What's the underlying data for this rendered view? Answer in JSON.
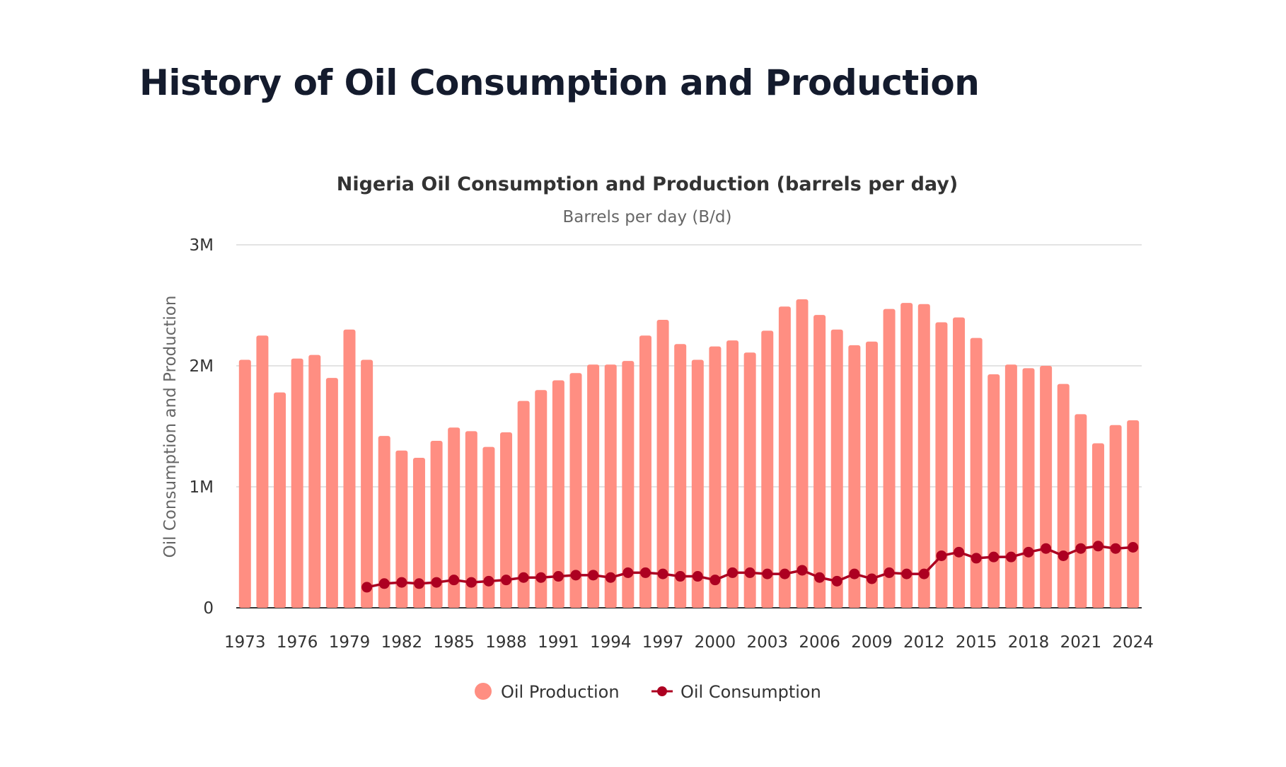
{
  "page_title": "History of Oil Consumption and Production",
  "colors": {
    "production": "#FF8E82",
    "consumption": "#AD0021"
  },
  "chart_data": {
    "type": "bar",
    "title": "Nigeria Oil Consumption and Production (barrels per day)",
    "subtitle": "Barrels per day (B/d)",
    "xlabel": "",
    "ylabel": "Oil Consumption and Production",
    "ylim": [
      0,
      3000000
    ],
    "yticks": [
      {
        "value": 0,
        "label": "0"
      },
      {
        "value": 1000000,
        "label": "1M"
      },
      {
        "value": 2000000,
        "label": "2M"
      },
      {
        "value": 3000000,
        "label": "3M"
      }
    ],
    "xtick_labels": [
      "1973",
      "1976",
      "1979",
      "1982",
      "1985",
      "1988",
      "1991",
      "1994",
      "1997",
      "2000",
      "2003",
      "2006",
      "2009",
      "2012",
      "2015",
      "2018",
      "2021",
      "2024"
    ],
    "grid": true,
    "legend": "bottom-center",
    "categories": [
      1973,
      1974,
      1975,
      1976,
      1977,
      1978,
      1979,
      1980,
      1981,
      1982,
      1983,
      1984,
      1985,
      1986,
      1987,
      1988,
      1989,
      1990,
      1991,
      1992,
      1993,
      1994,
      1995,
      1996,
      1997,
      1998,
      1999,
      2000,
      2001,
      2002,
      2003,
      2004,
      2005,
      2006,
      2007,
      2008,
      2009,
      2010,
      2011,
      2012,
      2013,
      2014,
      2015,
      2016,
      2017,
      2018,
      2019,
      2020,
      2021,
      2022,
      2023,
      2024
    ],
    "series": [
      {
        "name": "Oil Production",
        "type": "bar",
        "values": [
          2050000,
          2250000,
          1780000,
          2060000,
          2090000,
          1900000,
          2300000,
          2050000,
          1420000,
          1300000,
          1240000,
          1380000,
          1490000,
          1460000,
          1330000,
          1450000,
          1710000,
          1800000,
          1880000,
          1940000,
          2010000,
          2010000,
          2040000,
          2250000,
          2380000,
          2180000,
          2050000,
          2160000,
          2210000,
          2110000,
          2290000,
          2490000,
          2550000,
          2420000,
          2300000,
          2170000,
          2200000,
          2470000,
          2520000,
          2510000,
          2360000,
          2400000,
          2230000,
          1930000,
          2010000,
          1980000,
          2000000,
          1850000,
          1600000,
          1360000,
          1510000,
          1550000
        ]
      },
      {
        "name": "Oil Consumption",
        "type": "line",
        "values": [
          null,
          null,
          null,
          null,
          null,
          null,
          null,
          170000,
          200000,
          210000,
          200000,
          210000,
          230000,
          210000,
          220000,
          230000,
          250000,
          250000,
          260000,
          270000,
          270000,
          250000,
          290000,
          290000,
          280000,
          260000,
          260000,
          230000,
          290000,
          290000,
          280000,
          280000,
          310000,
          250000,
          220000,
          280000,
          240000,
          290000,
          280000,
          280000,
          430000,
          460000,
          410000,
          420000,
          420000,
          460000,
          490000,
          430000,
          490000,
          510000,
          490000,
          500000
        ]
      }
    ]
  }
}
